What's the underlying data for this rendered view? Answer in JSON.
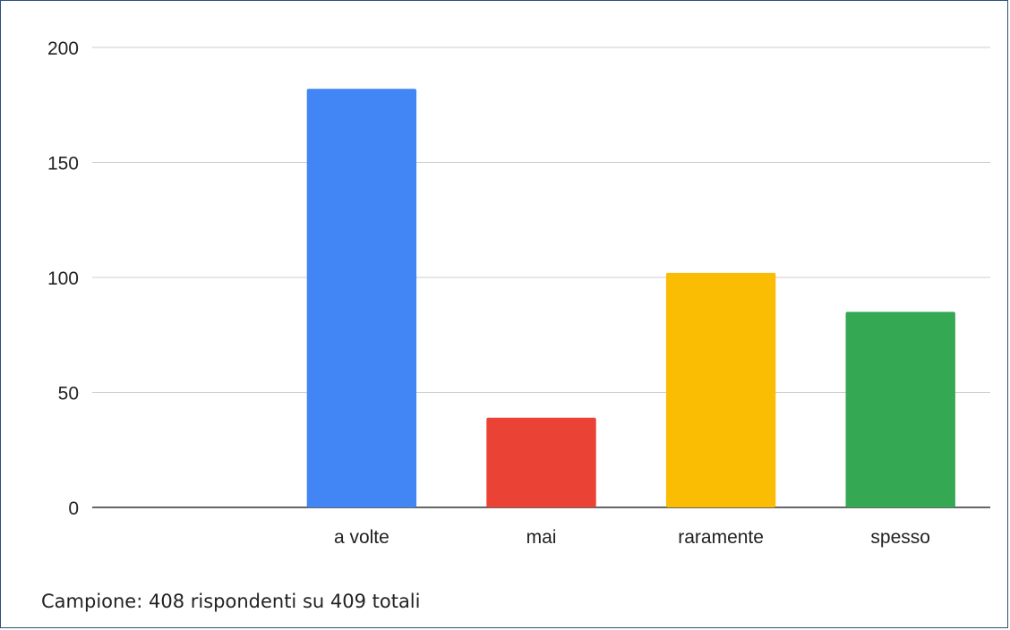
{
  "chart_data": {
    "type": "bar",
    "title": "",
    "xlabel": "",
    "ylabel": "",
    "categories": [
      "",
      "a volte",
      "mai",
      "raramente",
      "spesso"
    ],
    "values": [
      null,
      182,
      39,
      102,
      85
    ],
    "colors": [
      "#ffffff",
      "#4285f4",
      "#ea4335",
      "#fbbc04",
      "#34a853"
    ],
    "ylim": [
      0,
      200
    ],
    "yticks": [
      0,
      50,
      100,
      150,
      200
    ],
    "grid": true,
    "legend": "none"
  },
  "caption": "Campione: 408 rispondenti su 409 totali"
}
